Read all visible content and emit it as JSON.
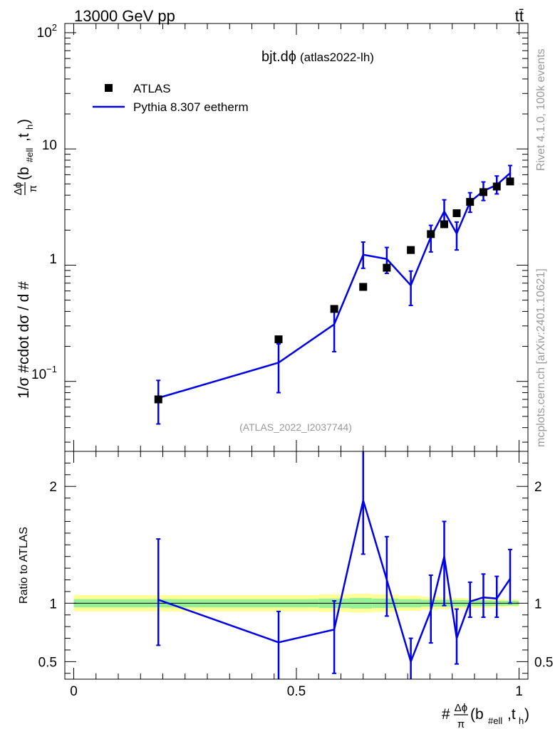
{
  "header": {
    "energy_label": "13000 GeV pp",
    "process_label": "tt̄"
  },
  "side_labels": {
    "rivet": "Rivet 4.1.0,  100k events",
    "mcplots": "mcplots.cern.ch [arXiv:2401.10621]"
  },
  "chart_data": [
    {
      "type": "scatter",
      "panel": "main",
      "title": "bjt.dϕ",
      "subtitle": "(atlas2022-lh)",
      "watermark": "(ATLAS_2022_I2037744)",
      "ylabel_parts": {
        "prefix": "1/σ #cdot dσ / d #",
        "frac_num": "Δϕ",
        "frac_den": "π",
        "args": "(b",
        "sub1": "#ell",
        "mid": ",t",
        "sub2": "h",
        "close": ")"
      },
      "yscale": "log",
      "ylim": [
        0.025,
        120
      ],
      "xlim": [
        -0.02,
        1.02
      ],
      "ytick_labels": [
        "10",
        "1"
      ],
      "ytick_labels_exp": [
        {
          "base": "10",
          "exp": "2",
          "value": 100
        },
        {
          "base": "10",
          "exp": "−1",
          "value": 0.1
        }
      ],
      "legend": {
        "position": "top-left",
        "entries": [
          {
            "label": "ATLAS",
            "marker": "square",
            "color": "#000000"
          },
          {
            "label": "Pythia 8.307 eetherm",
            "marker": "line",
            "color": "#0000e6"
          }
        ]
      },
      "series": [
        {
          "name": "ATLAS",
          "x": [
            0.19,
            0.46,
            0.585,
            0.65,
            0.703,
            0.757,
            0.802,
            0.832,
            0.86,
            0.89,
            0.92,
            0.95,
            0.98
          ],
          "y": [
            0.07,
            0.23,
            0.42,
            0.65,
            0.95,
            1.35,
            1.85,
            2.25,
            2.8,
            3.5,
            4.25,
            4.75,
            5.25
          ]
        },
        {
          "name": "Pythia 8.307 eetherm",
          "x": [
            0.19,
            0.46,
            0.585,
            0.65,
            0.703,
            0.757,
            0.802,
            0.832,
            0.86,
            0.89,
            0.92,
            0.95,
            0.98
          ],
          "y": [
            0.072,
            0.145,
            0.31,
            1.23,
            1.13,
            0.67,
            1.75,
            2.9,
            1.87,
            3.5,
            4.35,
            4.9,
            6.2
          ],
          "y_low": [
            0.043,
            0.08,
            0.18,
            0.94,
            0.85,
            0.45,
            1.3,
            2.25,
            1.35,
            2.85,
            3.6,
            4.1,
            5.2
          ],
          "y_high": [
            0.102,
            0.21,
            0.43,
            1.58,
            1.42,
            0.89,
            2.2,
            3.65,
            2.35,
            4.2,
            5.2,
            5.85,
            7.2
          ]
        }
      ]
    },
    {
      "type": "line",
      "panel": "ratio",
      "ylabel": "Ratio to ATLAS",
      "xlabel_parts": {
        "prefix": "#",
        "frac_num": "Δϕ",
        "frac_den": "π",
        "args": "(b",
        "sub1": "#ell",
        "mid": ",t",
        "sub2": "h",
        "close": ")"
      },
      "xlim": [
        -0.02,
        1.02
      ],
      "ylim": [
        0.35,
        2.3
      ],
      "xtick_labels": [
        "0",
        "0.5",
        "1"
      ],
      "xtick_values": [
        0,
        0.5,
        1
      ],
      "ytick_labels": [
        "2",
        "1",
        "0.5"
      ],
      "ytick_values": [
        2,
        1,
        0.5
      ],
      "band_colors": {
        "inner": "#96f096",
        "outer": "#ffff96"
      },
      "uncertainty_bands": {
        "x_edges": [
          0,
          0.4,
          0.55,
          0.62,
          0.67,
          0.73,
          0.78,
          0.82,
          0.85,
          0.88,
          0.91,
          0.94,
          0.97,
          1.0
        ],
        "inner": [
          0.035,
          0.035,
          0.04,
          0.045,
          0.04,
          0.035,
          0.03,
          0.03,
          0.028,
          0.025,
          0.025,
          0.022,
          0.02
        ],
        "outer": [
          0.07,
          0.07,
          0.075,
          0.08,
          0.075,
          0.065,
          0.055,
          0.05,
          0.045,
          0.04,
          0.04,
          0.035,
          0.03
        ]
      },
      "series": [
        {
          "name": "Pythia 8.307 eetherm / ATLAS",
          "x": [
            0.19,
            0.46,
            0.585,
            0.65,
            0.703,
            0.757,
            0.802,
            0.832,
            0.86,
            0.89,
            0.92,
            0.95,
            0.98
          ],
          "y": [
            1.03,
            0.665,
            0.775,
            1.88,
            1.2,
            0.5,
            0.94,
            1.4,
            0.7,
            1.015,
            1.05,
            1.04,
            1.21
          ],
          "y_low": [
            0.64,
            0.35,
            0.4,
            1.42,
            0.89,
            0.33,
            0.66,
            0.98,
            0.48,
            0.88,
            0.88,
            0.88,
            1.0
          ],
          "y_high": [
            1.55,
            0.93,
            1.02,
            2.3,
            1.57,
            0.7,
            1.24,
            1.7,
            0.95,
            1.18,
            1.25,
            1.23,
            1.46
          ]
        }
      ]
    }
  ]
}
